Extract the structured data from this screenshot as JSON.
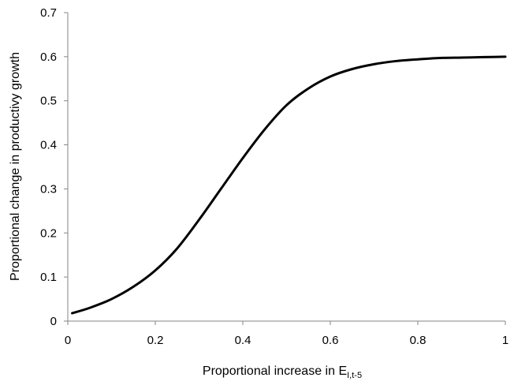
{
  "chart_data": {
    "type": "line",
    "xlabel": "Proportional increase in E",
    "xlabel_subscript": "I,t-5",
    "ylabel": "Proportional change in productivy growth",
    "xlim": [
      0,
      1
    ],
    "ylim": [
      0,
      0.7
    ],
    "x_ticks": [
      0,
      0.2,
      0.4,
      0.6,
      0.8,
      1
    ],
    "x_tick_labels": [
      "0",
      "0.2",
      "0.4",
      "0.6",
      "0.8",
      "1"
    ],
    "y_ticks": [
      0,
      0.1,
      0.2,
      0.3,
      0.4,
      0.5,
      0.6,
      0.7
    ],
    "y_tick_labels": [
      "0",
      "0.1",
      "0.2",
      "0.3",
      "0.4",
      "0.5",
      "0.6",
      "0.7"
    ],
    "grid": false,
    "legend": false,
    "line_color": "#000000",
    "series": [
      {
        "x": [
          0.01,
          0.05,
          0.1,
          0.15,
          0.2,
          0.25,
          0.3,
          0.35,
          0.4,
          0.45,
          0.5,
          0.55,
          0.6,
          0.65,
          0.7,
          0.75,
          0.8,
          0.85,
          0.9,
          0.95,
          1.0
        ],
        "y": [
          0.018,
          0.03,
          0.05,
          0.078,
          0.115,
          0.165,
          0.23,
          0.3,
          0.37,
          0.435,
          0.49,
          0.528,
          0.555,
          0.572,
          0.583,
          0.59,
          0.594,
          0.597,
          0.598,
          0.599,
          0.6
        ]
      }
    ]
  }
}
